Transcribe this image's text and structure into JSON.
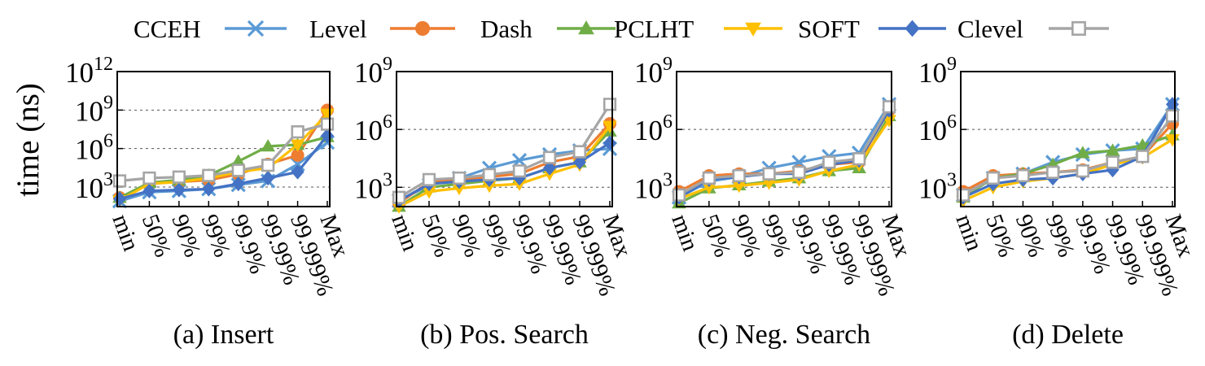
{
  "chart_data": {
    "type": "line",
    "yscale": "log",
    "ylabel": "time (ns)",
    "categories": [
      "min",
      "50%",
      "90%",
      "99%",
      "99.9%",
      "99.99%",
      "99.999%",
      "Max"
    ],
    "legend": {
      "placement": "top",
      "entries": [
        {
          "name": "CCEH",
          "color": "#5b9bd5",
          "marker": "x"
        },
        {
          "name": "Level",
          "color": "#ed7d31",
          "marker": "circle"
        },
        {
          "name": "Dash",
          "color": "#70ad47",
          "marker": "triangle-up"
        },
        {
          "name": "PCLHT",
          "color": "#ffc000",
          "marker": "triangle-down"
        },
        {
          "name": "SOFT",
          "color": "#4472c4",
          "marker": "diamond"
        },
        {
          "name": "Clevel",
          "color": "#a5a5a5",
          "marker": "square"
        }
      ]
    },
    "panels": [
      {
        "title": "(a) Insert",
        "ylim": [
          30,
          1000000000000
        ],
        "yticks": [
          {
            "value": 1000,
            "label": "10",
            "exp": "3"
          },
          {
            "value": 1000000,
            "label": "10",
            "exp": "6"
          },
          {
            "value": 1000000000,
            "label": "10",
            "exp": "9"
          },
          {
            "value": 1000000000000,
            "label": "10",
            "exp": "12"
          }
        ],
        "grid": true,
        "series": [
          {
            "name": "CCEH",
            "values": [
              80,
              400,
              500,
              700,
              1500,
              3000,
              60000,
              3000000
            ]
          },
          {
            "name": "Level",
            "values": [
              150,
              1800,
              2500,
              3500,
              10000,
              60000,
              300000,
              1000000000
            ]
          },
          {
            "name": "Dash",
            "values": [
              150,
              2200,
              3500,
              8000,
              100000,
              1500000,
              2000000,
              8000000
            ]
          },
          {
            "name": "PCLHT",
            "values": [
              90,
              1800,
              2500,
              5000,
              15000,
              30000,
              2000000,
              500000000
            ]
          },
          {
            "name": "SOFT",
            "values": [
              120,
              500,
              600,
              700,
              1800,
              5000,
              15000,
              10000000
            ]
          },
          {
            "name": "Clevel",
            "values": [
              3000,
              5000,
              6000,
              8000,
              20000,
              50000,
              20000000,
              80000000
            ]
          }
        ]
      },
      {
        "title": "(b) Pos. Search",
        "ylim": [
          100,
          1000000000
        ],
        "yticks": [
          {
            "value": 1000,
            "label": "10",
            "exp": "3"
          },
          {
            "value": 1000000,
            "label": "10",
            "exp": "6"
          },
          {
            "value": 1000000000,
            "label": "10",
            "exp": "9"
          }
        ],
        "grid": true,
        "series": [
          {
            "name": "CCEH",
            "values": [
              200,
              1300,
              3000,
              10000,
              25000,
              50000,
              80000,
              100000
            ]
          },
          {
            "name": "Level",
            "values": [
              150,
              1800,
              2500,
              3500,
              5000,
              20000,
              40000,
              2000000
            ]
          },
          {
            "name": "Dash",
            "values": [
              100,
              1000,
              1500,
              2200,
              3000,
              10000,
              20000,
              800000
            ]
          },
          {
            "name": "PCLHT",
            "values": [
              100,
              600,
              900,
              1200,
              1500,
              5000,
              15000,
              1500000
            ]
          },
          {
            "name": "SOFT",
            "values": [
              200,
              1500,
              2000,
              2500,
              3000,
              10000,
              20000,
              200000
            ]
          },
          {
            "name": "Clevel",
            "values": [
              300,
              2500,
              3000,
              4500,
              7000,
              35000,
              70000,
              20000000
            ]
          }
        ]
      },
      {
        "title": "(c) Neg. Search",
        "ylim": [
          100,
          1000000000
        ],
        "yticks": [
          {
            "value": 1000,
            "label": "10",
            "exp": "3"
          },
          {
            "value": 1000000,
            "label": "10",
            "exp": "6"
          },
          {
            "value": 1000000000,
            "label": "10",
            "exp": "9"
          }
        ],
        "grid": true,
        "series": [
          {
            "name": "CCEH",
            "values": [
              300,
              2000,
              3500,
              10000,
              20000,
              40000,
              60000,
              20000000
            ]
          },
          {
            "name": "Level",
            "values": [
              600,
              4000,
              5000,
              5000,
              7000,
              15000,
              20000,
              10000000
            ]
          },
          {
            "name": "Dash",
            "values": [
              150,
              900,
              1300,
              2000,
              3000,
              7000,
              10000,
              5000000
            ]
          },
          {
            "name": "PCLHT",
            "values": [
              250,
              1000,
              1200,
              1700,
              2500,
              7000,
              15000,
              3000000
            ]
          },
          {
            "name": "SOFT",
            "values": [
              300,
              2500,
              3500,
              5000,
              5000,
              15000,
              25000,
              10000000
            ]
          },
          {
            "name": "Clevel",
            "values": [
              400,
              3000,
              4000,
              5000,
              6000,
              20000,
              30000,
              15000000
            ]
          }
        ]
      },
      {
        "title": "(d) Delete",
        "ylim": [
          100,
          1000000000
        ],
        "yticks": [
          {
            "value": 1000,
            "label": "10",
            "exp": "3"
          },
          {
            "value": 1000000,
            "label": "10",
            "exp": "6"
          },
          {
            "value": 1000000000,
            "label": "10",
            "exp": "9"
          }
        ],
        "grid": true,
        "series": [
          {
            "name": "CCEH",
            "values": [
              400,
              3000,
              5000,
              20000,
              50000,
              80000,
              100000,
              20000000
            ]
          },
          {
            "name": "Level",
            "values": [
              600,
              4000,
              5000,
              6000,
              8000,
              20000,
              40000,
              2000000
            ]
          },
          {
            "name": "Dash",
            "values": [
              300,
              3000,
              5000,
              15000,
              60000,
              80000,
              150000,
              500000
            ]
          },
          {
            "name": "PCLHT",
            "values": [
              200,
              1000,
              2000,
              3000,
              5000,
              15000,
              35000,
              300000
            ]
          },
          {
            "name": "SOFT",
            "values": [
              300,
              1500,
              2500,
              3000,
              5000,
              8000,
              40000,
              20000000
            ]
          },
          {
            "name": "Clevel",
            "values": [
              400,
              3000,
              4000,
              6000,
              7000,
              20000,
              40000,
              5000000
            ]
          }
        ]
      }
    ]
  }
}
